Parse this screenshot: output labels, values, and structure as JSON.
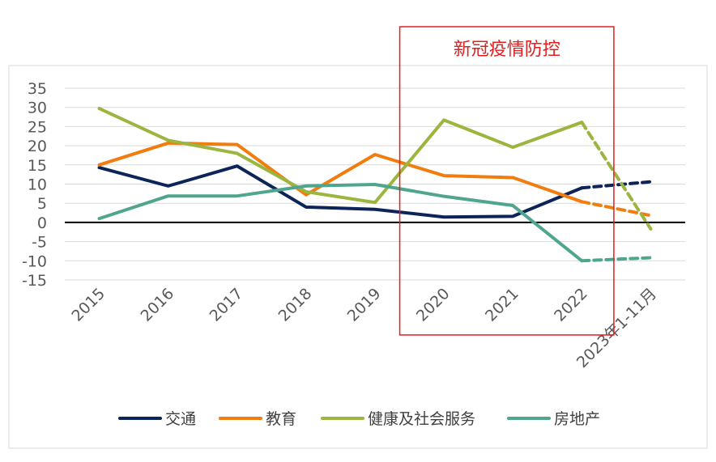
{
  "chart_data": {
    "type": "line",
    "categories": [
      "2015",
      "2016",
      "2017",
      "2018",
      "2019",
      "2020",
      "2021",
      "2022",
      "2023年1-11月"
    ],
    "ylim": [
      -15,
      35
    ],
    "yticks": [
      35,
      30,
      25,
      20,
      15,
      10,
      5,
      0,
      -5,
      -10,
      -15
    ],
    "grid": true,
    "legend_position": "bottom",
    "dashed_from_index": 7,
    "series": [
      {
        "name": "交通",
        "color": "#0d2458",
        "values": [
          14.3,
          9.5,
          14.7,
          4.0,
          3.4,
          1.4,
          1.6,
          9.0,
          10.6
        ]
      },
      {
        "name": "教育",
        "color": "#f07d0e",
        "values": [
          15.0,
          20.7,
          20.3,
          7.2,
          17.7,
          12.2,
          11.7,
          5.4,
          1.8
        ]
      },
      {
        "name": "健康及社会服务",
        "color": "#9bb53f",
        "values": [
          29.7,
          21.4,
          18.0,
          8.0,
          5.2,
          26.7,
          19.6,
          26.1,
          -1.7
        ]
      },
      {
        "name": "房地产",
        "color": "#4fa58e",
        "values": [
          1.0,
          6.9,
          6.9,
          9.5,
          9.9,
          6.8,
          4.4,
          -10.0,
          -9.2
        ]
      }
    ],
    "annotation": {
      "text": "新冠疫情防控",
      "color": "#e02020",
      "from_category": "2020",
      "to_category": "2022"
    }
  }
}
